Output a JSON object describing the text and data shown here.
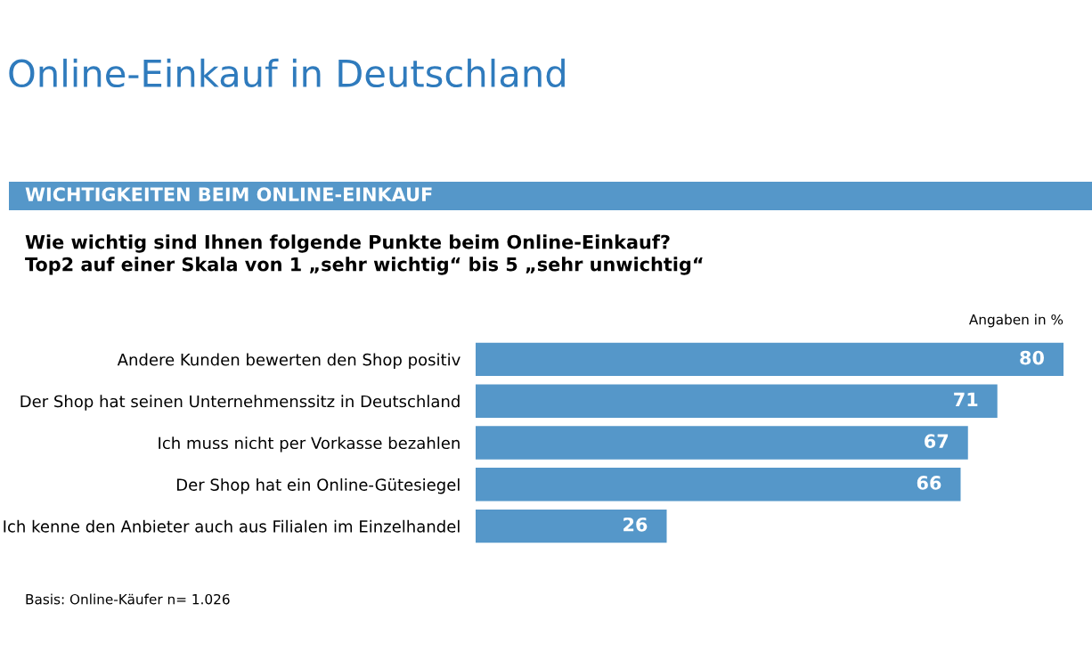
{
  "chart_data": {
    "type": "bar",
    "orientation": "horizontal",
    "title": "Online-Einkauf in Deutschland",
    "subtitle": "WICHTIGKEITEN BEIM ONLINE-EINKAUF",
    "categories": [
      "Andere Kunden bewerten den Shop positiv",
      "Der Shop hat seinen Unternehmenssitz in Deutschland",
      "Ich muss nicht per Vorkasse bezahlen",
      "Der Shop hat ein Online-Gütesiegel",
      "Ich kenne den Anbieter auch aus Filialen im Einzelhandel"
    ],
    "values": [
      80,
      71,
      67,
      66,
      26
    ],
    "color": "#5597c9",
    "data_labels": true,
    "grid": false,
    "legend": false,
    "annotations": [
      "Wie wichtig sind Ihnen folgende Punkte beim Online-Einkauf?\nTop2 auf einer Skala von 1 „sehr wichtig“ bis 5 „sehr unwichtig“",
      "Angaben in %",
      "Basis: Online-Käufer n= 1.026"
    ]
  }
}
